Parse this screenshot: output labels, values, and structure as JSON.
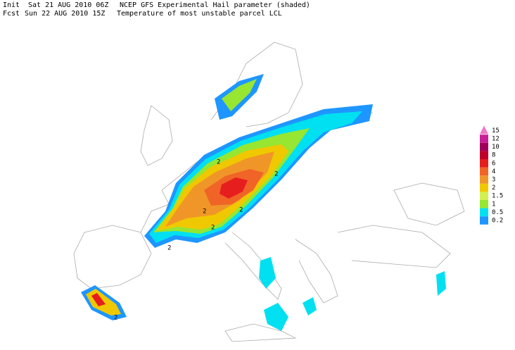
{
  "header": {
    "init_label": "Init",
    "init_time": "Sat 21 AUG 2010 06Z",
    "title": "NCEP GFS Experimental Hail parameter (shaded)",
    "fcst_label": "Fcst",
    "fcst_time": "Sun 22 AUG 2010 15Z",
    "subtitle": "Temperature of most unstable parcel LCL"
  },
  "legend": {
    "levels": [
      0.2,
      0.5,
      1,
      1.5,
      2,
      3,
      4,
      6,
      8,
      10,
      12,
      15
    ],
    "colors": [
      "#1e96ff",
      "#00e0f0",
      "#96e632",
      "#d2f050",
      "#f0c800",
      "#f09628",
      "#f06428",
      "#e61e1e",
      "#c0002a",
      "#a0005a",
      "#c81e96",
      "#f078c8"
    ]
  },
  "contour_labels": [
    2,
    2,
    2,
    2,
    2,
    2,
    2
  ]
}
